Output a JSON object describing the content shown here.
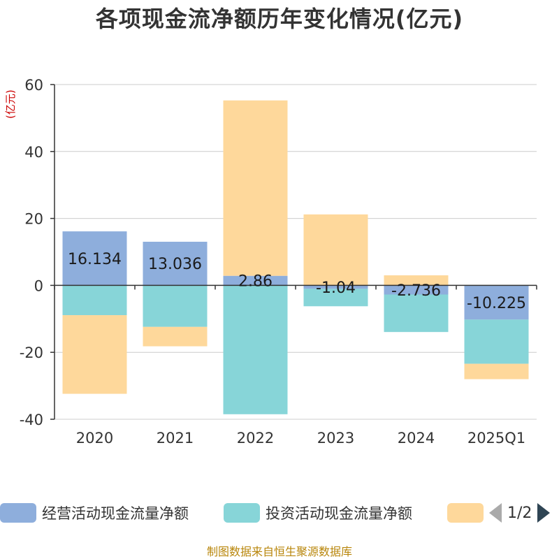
{
  "chart_data": {
    "type": "bar",
    "stacked": true,
    "title": "各项现金流净额历年变化情况(亿元)",
    "ylabel": "(亿元)",
    "ylim": [
      -40,
      60
    ],
    "yticks": [
      60,
      40,
      20,
      0,
      -20,
      -40
    ],
    "categories": [
      "2020",
      "2021",
      "2022",
      "2023",
      "2024",
      "2025Q1"
    ],
    "series": [
      {
        "name": "经营活动现金流量净额",
        "color": "#8eaedc",
        "values": [
          16.134,
          13.036,
          2.86,
          -1.04,
          -2.736,
          -10.225
        ]
      },
      {
        "name": "投资活动现金流量净额",
        "color": "#87d5d8",
        "values": [
          -8.9,
          -12.4,
          -38.5,
          -5.2,
          -11.2,
          -13.2
        ]
      },
      {
        "name": "",
        "color": "#fed89b",
        "values": [
          -23.5,
          -5.8,
          52.4,
          21.2,
          3.0,
          -4.6
        ]
      }
    ],
    "data_labels": [
      "16.134",
      "13.036",
      "2.86",
      "-1.04",
      "-2.736",
      "-10.225"
    ]
  },
  "legend": {
    "items": [
      {
        "label": "经营活动现金流量净额",
        "color": "#8eaedc"
      },
      {
        "label": "投资活动现金流量净额",
        "color": "#87d5d8"
      },
      {
        "label": "",
        "color": "#fed89b"
      }
    ],
    "page_text": "1/2"
  },
  "source": "制图数据来自恒生聚源数据库"
}
